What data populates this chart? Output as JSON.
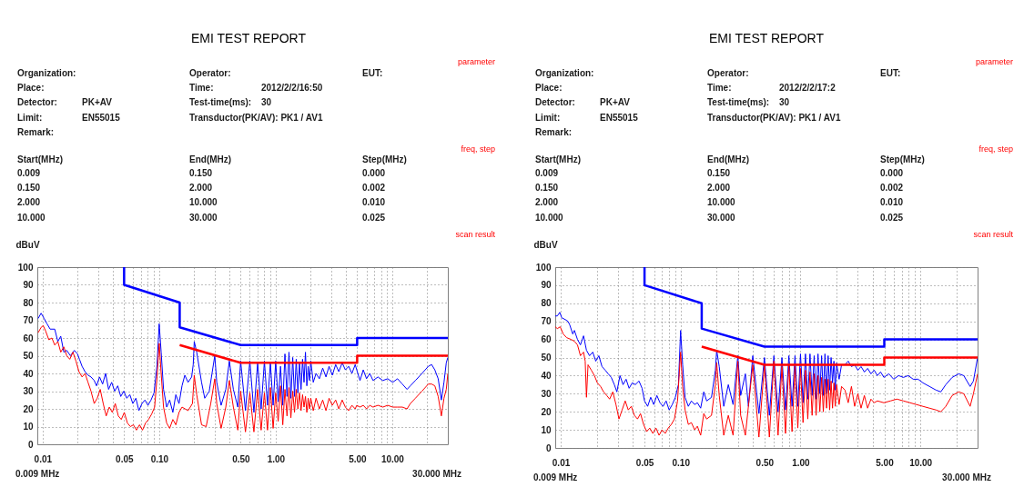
{
  "chart_data": [
    {
      "type": "other",
      "title": "EMI TEST REPORT",
      "annotations": [
        "parameter",
        "Organization:",
        "Operator:",
        "EUT:",
        "Place:",
        "Time:",
        "2012/2/2/16:50",
        "Detector:",
        "PK+AV",
        "Test-time(ms):",
        "30",
        "Limit:",
        "EN55015",
        "Transductor(PK/AV): PK1 / AV1",
        "Remark:",
        "freq, step",
        "Start(MHz)",
        "End(MHz)",
        "Step(MHz)",
        "0.009",
        "0.150",
        "0.000",
        "0.150",
        "2.000",
        "0.002",
        "2.000",
        "10.000",
        "0.010",
        "10.000",
        "30.000",
        "0.025",
        "scan result"
      ]
    },
    {
      "type": "line",
      "ylabel": "dBuV",
      "annotations": [
        "0.009 MHz",
        "30.000 MHz"
      ],
      "log": "x",
      "grid": true,
      "xlim": [
        0.009,
        30
      ],
      "ylim": [
        0,
        100
      ],
      "xticks": [
        {
          "value": 0.01,
          "label": "0.01"
        },
        {
          "value": 0.02,
          "label": null
        },
        {
          "value": 0.03,
          "label": null
        },
        {
          "value": 0.04,
          "label": null
        },
        {
          "value": 0.05,
          "label": "0.05"
        },
        {
          "value": 0.06,
          "label": null
        },
        {
          "value": 0.07,
          "label": null
        },
        {
          "value": 0.08,
          "label": null
        },
        {
          "value": 0.09,
          "label": null
        },
        {
          "value": 0.1,
          "label": "0.10"
        },
        {
          "value": 0.2,
          "label": null
        },
        {
          "value": 0.3,
          "label": null
        },
        {
          "value": 0.4,
          "label": null
        },
        {
          "value": 0.5,
          "label": "0.50"
        },
        {
          "value": 0.6,
          "label": null
        },
        {
          "value": 0.7,
          "label": null
        },
        {
          "value": 0.8,
          "label": null
        },
        {
          "value": 0.9,
          "label": null
        },
        {
          "value": 1,
          "label": "1.00"
        },
        {
          "value": 2,
          "label": null
        },
        {
          "value": 3,
          "label": null
        },
        {
          "value": 4,
          "label": null
        },
        {
          "value": 5,
          "label": "5.00"
        },
        {
          "value": 6,
          "label": null
        },
        {
          "value": 7,
          "label": null
        },
        {
          "value": 8,
          "label": null
        },
        {
          "value": 9,
          "label": null
        },
        {
          "value": 10,
          "label": "10.00"
        },
        {
          "value": 20,
          "label": null
        }
      ],
      "yticks": [
        0,
        10,
        20,
        30,
        40,
        50,
        60,
        70,
        80,
        90,
        100
      ],
      "series": [
        {
          "color": "#0000ff",
          "x": [
            0.00914,
            0.0097,
            0.0103,
            0.0109,
            0.0116,
            0.0127,
            0.0135,
            0.0143,
            0.0152,
            0.0161,
            0.0173,
            0.0187,
            0.0199,
            0.0207,
            0.0218,
            0.0231,
            0.0245,
            0.026,
            0.0277,
            0.029,
            0.0308,
            0.0327,
            0.0347,
            0.0368,
            0.0391,
            0.0415,
            0.0441,
            0.0468,
            0.0497,
            0.0527,
            0.056,
            0.0594,
            0.0631,
            0.067,
            0.0711,
            0.0755,
            0.0801,
            0.0851,
            0.0903,
            0.0959,
            0.1,
            0.104,
            0.109,
            0.116,
            0.123,
            0.131,
            0.139,
            0.148,
            0.157,
            0.166,
            0.177,
            0.19,
            0.196,
            0.2,
            0.21,
            0.231,
            0.246,
            0.269,
            0.3,
            0.312,
            0.34,
            0.373,
            0.4,
            0.433,
            0.473,
            0.5,
            0.55,
            0.6,
            0.65,
            0.7,
            0.75,
            0.8,
            0.85,
            0.9,
            0.95,
            1,
            1.05,
            1.1,
            1.15,
            1.2,
            1.25,
            1.3,
            1.35,
            1.4,
            1.45,
            1.5,
            1.55,
            1.6,
            1.65,
            1.7,
            1.75,
            1.8,
            1.85,
            1.9,
            1.95,
            2,
            2.1,
            2.22,
            2.37,
            2.53,
            2.7,
            2.87,
            3.06,
            3.27,
            3.48,
            3.72,
            3.96,
            4.23,
            4.51,
            4.81,
            4.96,
            5.29,
            5.64,
            6.02,
            6.42,
            6.84,
            7.54,
            8.3,
            9.14,
            10.1,
            11.1,
            12.2,
            13.4,
            14.3,
            15.8,
            18,
            20.4,
            21.8,
            23.2,
            24.8,
            26.4,
            27.8,
            29.1,
            30
          ],
          "values": [
            71,
            74,
            71,
            68,
            65,
            65,
            58,
            61,
            52,
            53,
            50,
            53,
            51,
            48,
            44,
            41,
            39,
            38,
            36,
            33,
            38,
            34,
            40,
            31,
            35,
            30,
            33,
            27,
            30,
            26,
            28,
            23,
            26,
            19,
            23,
            25,
            22,
            25,
            29,
            45,
            68,
            52,
            31,
            21,
            25,
            18,
            28,
            23,
            33,
            39,
            35,
            38,
            45,
            58,
            52,
            35,
            26,
            30,
            50,
            35,
            22,
            31,
            47,
            31,
            21,
            47,
            19,
            47,
            18,
            46,
            20,
            47,
            22,
            46,
            22,
            47,
            24,
            44,
            22,
            51,
            27,
            52,
            26,
            49,
            27,
            48,
            29,
            46,
            31,
            48,
            35,
            52,
            33,
            44,
            36,
            47,
            35,
            40,
            37,
            43,
            38,
            44,
            39,
            45,
            41,
            46,
            42,
            44,
            40,
            45,
            42,
            36,
            42,
            37,
            40,
            36,
            38,
            36,
            37,
            35,
            37,
            34,
            31,
            33,
            36,
            40,
            44,
            45,
            42,
            37,
            25,
            35,
            46,
            49
          ]
        },
        {
          "color": "#ff0000",
          "x": [
            0.00914,
            0.0097,
            0.0101,
            0.0106,
            0.0113,
            0.012,
            0.0127,
            0.0135,
            0.0143,
            0.0152,
            0.0161,
            0.0171,
            0.0182,
            0.0193,
            0.0205,
            0.0218,
            0.0231,
            0.0245,
            0.026,
            0.0277,
            0.0294,
            0.0312,
            0.0331,
            0.0351,
            0.0373,
            0.0396,
            0.042,
            0.0446,
            0.0473,
            0.0502,
            0.0534,
            0.0566,
            0.0601,
            0.0638,
            0.0678,
            0.0719,
            0.0764,
            0.0811,
            0.0861,
            0.0914,
            0.0959,
            0.1,
            0.104,
            0.109,
            0.116,
            0.123,
            0.131,
            0.139,
            0.148,
            0.157,
            0.177,
            0.193,
            0.2,
            0.21,
            0.231,
            0.253,
            0.277,
            0.3,
            0.312,
            0.34,
            0.373,
            0.4,
            0.433,
            0.473,
            0.5,
            0.55,
            0.6,
            0.65,
            0.7,
            0.75,
            0.8,
            0.85,
            0.9,
            0.95,
            1,
            1.05,
            1.1,
            1.15,
            1.2,
            1.25,
            1.3,
            1.35,
            1.4,
            1.45,
            1.5,
            1.55,
            1.6,
            1.65,
            1.7,
            1.75,
            1.8,
            1.85,
            1.9,
            1.95,
            2,
            2.1,
            2.22,
            2.37,
            2.53,
            2.7,
            2.87,
            3.06,
            3.27,
            3.48,
            3.72,
            3.96,
            4.23,
            4.51,
            4.81,
            4.96,
            5.29,
            5.64,
            6.02,
            6.42,
            6.84,
            7.54,
            8.3,
            9.14,
            10.1,
            11.1,
            12.2,
            13.4,
            14.3,
            15.8,
            18,
            20.4,
            21.8,
            23.2,
            24.8,
            26.4,
            27.8,
            29.1,
            30
          ],
          "values": [
            63,
            66,
            67,
            64,
            59,
            60,
            56,
            58,
            52,
            55,
            50,
            48,
            52,
            47,
            41,
            38,
            40,
            35,
            30,
            23,
            26,
            31,
            23,
            16,
            21,
            18,
            23,
            16,
            14,
            18,
            12,
            10,
            11,
            8,
            11,
            8,
            12,
            14,
            17,
            21,
            38,
            57,
            40,
            21,
            12,
            9,
            14,
            11,
            18,
            21,
            19,
            23,
            39,
            28,
            11,
            10,
            23,
            37,
            23,
            9,
            21,
            36,
            21,
            8,
            30,
            7,
            29,
            7,
            31,
            8,
            29,
            8,
            32,
            9,
            29,
            13,
            33,
            11,
            31,
            16,
            32,
            15,
            30,
            18,
            31,
            20,
            29,
            19,
            28,
            21,
            27,
            18,
            26,
            20,
            26,
            19,
            26,
            20,
            25,
            19,
            26,
            22,
            25,
            20,
            25,
            21,
            19,
            22,
            20,
            22,
            21,
            22,
            20,
            22,
            21,
            22,
            21,
            22,
            21,
            21,
            21,
            20,
            23,
            26,
            30,
            34,
            34,
            33,
            27,
            16,
            26,
            31,
            40
          ]
        },
        {
          "color": "#0000ff",
          "x": [
            0.05,
            0.05,
            0.15,
            0.15,
            0.5,
            5,
            5,
            30
          ],
          "values": [
            100,
            90,
            80,
            66,
            56,
            56,
            60,
            60
          ]
        },
        {
          "color": "#ff0000",
          "x": [
            0.15,
            0.5,
            5,
            5,
            30
          ],
          "values": [
            56,
            46,
            46,
            50,
            50
          ]
        }
      ]
    },
    {
      "type": "other",
      "title": "EMI TEST REPORT",
      "annotations": [
        "parameter",
        "Organization:",
        "Operator:",
        "EUT:",
        "Place:",
        "Time:",
        "2012/2/2/17:2",
        "Detector:",
        "PK+AV",
        "Test-time(ms):",
        "30",
        "Limit:",
        "EN55015",
        "Transductor(PK/AV): PK1 / AV1",
        "Remark:",
        "freq, step",
        "Start(MHz)",
        "End(MHz)",
        "Step(MHz)",
        "0.009",
        "0.150",
        "0.000",
        "0.150",
        "2.000",
        "0.002",
        "2.000",
        "10.000",
        "0.010",
        "10.000",
        "30.000",
        "0.025",
        "scan result"
      ]
    },
    {
      "type": "line",
      "ylabel": "dBuV",
      "annotations": [
        "0.009 MHz",
        "30.000 MHz"
      ],
      "log": "x",
      "grid": true,
      "xlim": [
        0.009,
        30
      ],
      "ylim": [
        0,
        100
      ],
      "xticks": [
        {
          "value": 0.01,
          "label": "0.01"
        },
        {
          "value": 0.02,
          "label": null
        },
        {
          "value": 0.03,
          "label": null
        },
        {
          "value": 0.04,
          "label": null
        },
        {
          "value": 0.05,
          "label": "0.05"
        },
        {
          "value": 0.06,
          "label": null
        },
        {
          "value": 0.07,
          "label": null
        },
        {
          "value": 0.08,
          "label": null
        },
        {
          "value": 0.09,
          "label": null
        },
        {
          "value": 0.1,
          "label": "0.10"
        },
        {
          "value": 0.2,
          "label": null
        },
        {
          "value": 0.3,
          "label": null
        },
        {
          "value": 0.4,
          "label": null
        },
        {
          "value": 0.5,
          "label": "0.50"
        },
        {
          "value": 0.6,
          "label": null
        },
        {
          "value": 0.7,
          "label": null
        },
        {
          "value": 0.8,
          "label": null
        },
        {
          "value": 0.9,
          "label": null
        },
        {
          "value": 1,
          "label": "1.00"
        },
        {
          "value": 2,
          "label": null
        },
        {
          "value": 3,
          "label": null
        },
        {
          "value": 4,
          "label": null
        },
        {
          "value": 5,
          "label": "5.00"
        },
        {
          "value": 6,
          "label": null
        },
        {
          "value": 7,
          "label": null
        },
        {
          "value": 8,
          "label": null
        },
        {
          "value": 9,
          "label": null
        },
        {
          "value": 10,
          "label": "10.00"
        },
        {
          "value": 20,
          "label": null
        }
      ],
      "yticks": [
        0,
        10,
        20,
        30,
        40,
        50,
        60,
        70,
        80,
        90,
        100
      ],
      "series": [
        {
          "color": "#0000ff",
          "x": [
            0.009,
            0.00937,
            0.00982,
            0.0102,
            0.0109,
            0.0115,
            0.0119,
            0.0126,
            0.013,
            0.0138,
            0.0146,
            0.0155,
            0.0164,
            0.0174,
            0.0185,
            0.0196,
            0.0208,
            0.0221,
            0.0235,
            0.0249,
            0.0264,
            0.028,
            0.0294,
            0.0312,
            0.0331,
            0.0351,
            0.0372,
            0.0395,
            0.0419,
            0.045,
            0.0477,
            0.05,
            0.0531,
            0.0563,
            0.0597,
            0.0634,
            0.0673,
            0.0714,
            0.0757,
            0.0803,
            0.0852,
            0.0904,
            0.0959,
            0.1,
            0.104,
            0.109,
            0.116,
            0.123,
            0.131,
            0.138,
            0.147,
            0.156,
            0.165,
            0.181,
            0.195,
            0.2,
            0.21,
            0.229,
            0.25,
            0.274,
            0.3,
            0.317,
            0.347,
            0.368,
            0.4,
            0.45,
            0.5,
            0.55,
            0.6,
            0.65,
            0.7,
            0.75,
            0.8,
            0.85,
            0.9,
            0.95,
            1,
            1.05,
            1.1,
            1.15,
            1.2,
            1.25,
            1.3,
            1.35,
            1.4,
            1.45,
            1.5,
            1.55,
            1.6,
            1.65,
            1.7,
            1.75,
            1.8,
            1.85,
            1.9,
            1.95,
            2,
            2.1,
            2.2,
            2.35,
            2.5,
            2.66,
            2.83,
            3.01,
            3.2,
            3.41,
            3.63,
            3.87,
            4.12,
            4.38,
            4.66,
            4.96,
            5.45,
            5.99,
            6.58,
            7.22,
            7.93,
            8.71,
            9.57,
            10.5,
            11.9,
            13.5,
            14.8,
            16.3,
            18.4,
            20.9,
            23,
            26,
            27.7,
            30
          ],
          "values": [
            73,
            73,
            75,
            72,
            71,
            70,
            68,
            63,
            65,
            60,
            57,
            62,
            54,
            51,
            53,
            48,
            51,
            45,
            43,
            41,
            39,
            35,
            31,
            40,
            35,
            38,
            33,
            36,
            35,
            37,
            33,
            26,
            23,
            28,
            24,
            29,
            25,
            23,
            26,
            21,
            24,
            28,
            35,
            65,
            46,
            28,
            23,
            26,
            24,
            25,
            22,
            31,
            26,
            28,
            43,
            54,
            45,
            23,
            35,
            24,
            51,
            29,
            41,
            23,
            51,
            19,
            50,
            18,
            51,
            20,
            50,
            21,
            51,
            23,
            51,
            23,
            52,
            25,
            52,
            27,
            52,
            29,
            51,
            27,
            52,
            30,
            51,
            29,
            52,
            30,
            51,
            32,
            50,
            36,
            48,
            32,
            47,
            38,
            46,
            46,
            48,
            45,
            46,
            43,
            45,
            42,
            44,
            41,
            43,
            40,
            42,
            39,
            41,
            38,
            40,
            39,
            40,
            38,
            38,
            36,
            34,
            32,
            31,
            35,
            39,
            41,
            40,
            34,
            37,
            50
          ]
        },
        {
          "color": "#ff0000",
          "x": [
            0.009,
            0.00937,
            0.0099,
            0.0105,
            0.0112,
            0.0122,
            0.013,
            0.0138,
            0.0146,
            0.0155,
            0.016,
            0.0164,
            0.0169,
            0.018,
            0.0191,
            0.0202,
            0.0215,
            0.0228,
            0.0242,
            0.0256,
            0.0272,
            0.0289,
            0.0306,
            0.0325,
            0.0345,
            0.0366,
            0.0388,
            0.0412,
            0.0437,
            0.0463,
            0.0491,
            0.0521,
            0.0553,
            0.0587,
            0.0623,
            0.0661,
            0.0701,
            0.0744,
            0.0789,
            0.0837,
            0.0888,
            0.0943,
            0.1,
            0.104,
            0.109,
            0.116,
            0.123,
            0.131,
            0.138,
            0.147,
            0.156,
            0.165,
            0.181,
            0.195,
            0.2,
            0.21,
            0.229,
            0.25,
            0.274,
            0.3,
            0.317,
            0.347,
            0.4,
            0.45,
            0.5,
            0.55,
            0.6,
            0.65,
            0.7,
            0.75,
            0.8,
            0.85,
            0.9,
            0.95,
            1,
            1.05,
            1.1,
            1.15,
            1.2,
            1.25,
            1.3,
            1.35,
            1.4,
            1.45,
            1.5,
            1.55,
            1.6,
            1.65,
            1.7,
            1.75,
            1.8,
            1.85,
            1.9,
            1.95,
            2,
            2.1,
            2.2,
            2.35,
            2.5,
            2.66,
            2.83,
            3.01,
            3.2,
            3.41,
            3.63,
            3.87,
            4.12,
            4.38,
            4.96,
            5.63,
            6.37,
            7.22,
            8.18,
            9.27,
            10.5,
            11.9,
            13.5,
            14.8,
            16.3,
            18.4,
            20.9,
            23,
            26,
            27.7,
            30
          ],
          "values": [
            67,
            66,
            67,
            63,
            61,
            60,
            59,
            57,
            51,
            53,
            48,
            28,
            46,
            43,
            40,
            36,
            34,
            31,
            29,
            27,
            31,
            24,
            16,
            21,
            26,
            21,
            23,
            18,
            16,
            19,
            13,
            9,
            11,
            8,
            11,
            7,
            10,
            8,
            11,
            13,
            16,
            26,
            53,
            34,
            21,
            13,
            14,
            10,
            12,
            7,
            19,
            16,
            18,
            35,
            47,
            29,
            7,
            18,
            7,
            48,
            18,
            7,
            46,
            6,
            46,
            6,
            48,
            7,
            45,
            8,
            46,
            9,
            45,
            11,
            44,
            14,
            43,
            16,
            42,
            18,
            41,
            18,
            40,
            20,
            39,
            20,
            38,
            22,
            38,
            21,
            37,
            22,
            36,
            23,
            35,
            24,
            34,
            32,
            25,
            34,
            23,
            30,
            22,
            29,
            22,
            27,
            25,
            26,
            25,
            26,
            27,
            26,
            25,
            24,
            23,
            22,
            21,
            20,
            23,
            29,
            31,
            30,
            23,
            30,
            41
          ]
        },
        {
          "color": "#0000ff",
          "x": [
            0.05,
            0.05,
            0.15,
            0.15,
            0.5,
            5,
            5,
            30
          ],
          "values": [
            100,
            90,
            80,
            66,
            56,
            56,
            60,
            60
          ]
        },
        {
          "color": "#ff0000",
          "x": [
            0.15,
            0.5,
            5,
            5,
            30
          ],
          "values": [
            56,
            46,
            46,
            50,
            50
          ]
        }
      ]
    }
  ]
}
